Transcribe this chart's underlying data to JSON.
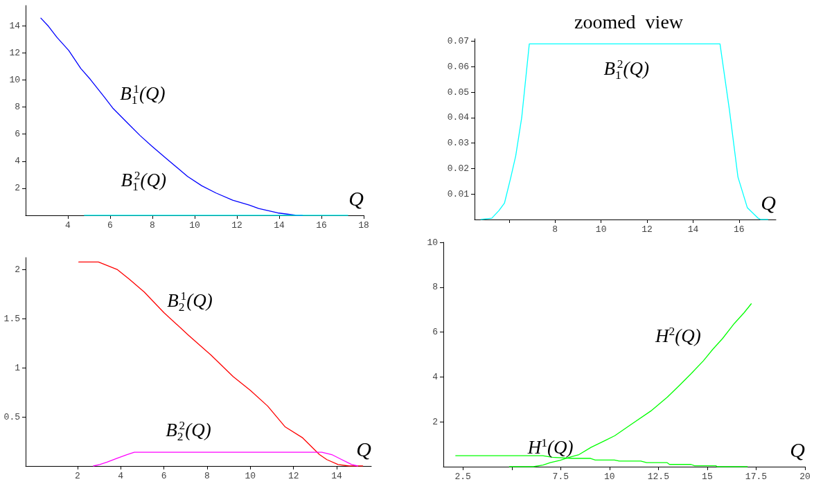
{
  "chart_data": [
    {
      "type": "line",
      "xlabel": "Q",
      "xlim": [
        2,
        18
      ],
      "ylim": [
        0,
        15.5
      ],
      "xticks": [
        4,
        6,
        8,
        10,
        12,
        14,
        16,
        18
      ],
      "yticks": [
        2,
        4,
        6,
        8,
        10,
        12,
        14
      ],
      "grid": false,
      "marker": "none",
      "line_style": "solid",
      "series": [
        {
          "color": "#0000ff",
          "x": [
            2.72,
            3.09,
            3.48,
            4.04,
            4.61,
            5.06,
            5.73,
            6.12,
            6.85,
            7.42,
            7.98,
            8.65,
            9.66,
            10.34,
            11.01,
            11.8,
            12.58,
            13.03,
            13.93,
            14.83,
            15.1
          ],
          "values": [
            14.57,
            13.95,
            13.15,
            12.18,
            10.85,
            10.05,
            8.73,
            7.93,
            6.78,
            5.89,
            5.1,
            4.21,
            2.88,
            2.18,
            1.65,
            1.12,
            0.76,
            0.5,
            0.18,
            0,
            0
          ]
        },
        {
          "color": "#00ffff",
          "x": [
            4.78,
            17.25
          ],
          "values": [
            0,
            0
          ]
        }
      ],
      "annotations": [
        "B$_{1}$$^{1}$(Q)",
        "B$_{1}$$^{2}$(Q)"
      ]
    },
    {
      "type": "line",
      "title": "zoomed  view",
      "xlabel": "Q",
      "xlim": [
        4.5,
        17.6
      ],
      "ylim": [
        0,
        0.071
      ],
      "xticks": [
        {
          "value": 6,
          "label": null
        },
        8,
        10,
        12,
        14,
        16
      ],
      "yticks": [
        0.01,
        0.02,
        0.03,
        0.04,
        0.05,
        0.06,
        0.07
      ],
      "grid": false,
      "marker": "none",
      "line_style": "solid",
      "series": [
        {
          "color": "#00ffff",
          "x": [
            4.78,
            5.25,
            5.56,
            5.8,
            6.08,
            6.29,
            6.55,
            6.88,
            15.17,
            15.58,
            15.95,
            16.36,
            16.83,
            16.93,
            17.25
          ],
          "values": [
            0,
            0.0005,
            0.0035,
            0.0064,
            0.0167,
            0.025,
            0.04,
            0.069,
            0.069,
            0.043,
            0.0167,
            0.0046,
            0.0005,
            0,
            0
          ]
        }
      ],
      "annotations": [
        "B$_{1}$$^{2}$(Q)"
      ]
    },
    {
      "type": "line",
      "xlabel": "Q",
      "xlim": [
        -0.4,
        15.6
      ],
      "ylim": [
        0,
        2.12
      ],
      "xticks": [
        2,
        4,
        6,
        8,
        10,
        12,
        14
      ],
      "yticks": [
        0.5,
        1,
        1.5,
        2
      ],
      "grid": false,
      "marker": "none",
      "line_style": "solid",
      "series": [
        {
          "color": "#ff0000",
          "x": [
            2.06,
            2.97,
            3.37,
            3.83,
            4.4,
            5.09,
            6.0,
            7.14,
            8.17,
            9.2,
            10.0,
            10.8,
            11.6,
            12.4,
            13.2,
            13.54,
            14.06,
            14.57,
            15.2
          ],
          "values": [
            2.075,
            2.075,
            2.04,
            2.0,
            1.9,
            1.77,
            1.56,
            1.33,
            1.13,
            0.91,
            0.77,
            0.61,
            0.4,
            0.29,
            0.116,
            0.065,
            0.015,
            0,
            0
          ]
        },
        {
          "color": "#ff00ff",
          "x": [
            2.74,
            3.03,
            3.37,
            3.83,
            4.29,
            4.63,
            13.31,
            13.77,
            14.23,
            14.69,
            14.97
          ],
          "values": [
            0,
            0.015,
            0.04,
            0.078,
            0.116,
            0.14,
            0.14,
            0.116,
            0.065,
            0.015,
            0
          ]
        }
      ],
      "annotations": [
        "B$_{2}$$^{1}$(Q)",
        "B$_{2}$$^{2}$(Q)"
      ]
    },
    {
      "type": "line",
      "xlabel": "Q",
      "xlim": [
        1.5,
        20
      ],
      "ylim": [
        0,
        10
      ],
      "xticks": [
        2.5,
        {
          "value": 5,
          "label": null
        },
        7.5,
        10,
        12.5,
        15,
        17.5,
        20
      ],
      "yticks": [
        2,
        4,
        6,
        8,
        10
      ],
      "grid": false,
      "marker": "none",
      "line_style": "solid",
      "series": [
        {
          "color": "#00ff00",
          "x": [
            2.13,
            6.58,
            7.07,
            8.05,
            9.03,
            9.27,
            10.25,
            10.5,
            11.6,
            11.9,
            12.95,
            13.07,
            14.17,
            14.35,
            15.45,
            15.5,
            17.05
          ],
          "values": [
            0.49,
            0.49,
            0.42,
            0.37,
            0.37,
            0.3,
            0.3,
            0.25,
            0.25,
            0.18,
            0.18,
            0.1,
            0.1,
            0.04,
            0.04,
            0,
            0
          ]
        },
        {
          "color": "#00ff00",
          "x": [
            4.88,
            6.11,
            6.6,
            6.97,
            7.46,
            7.95,
            8.44,
            9.05,
            9.78,
            10.27,
            11.13,
            12.11,
            12.96,
            13.57,
            14.18,
            14.8,
            15.29,
            15.78,
            16.39,
            16.88,
            17.25
          ],
          "values": [
            0,
            0,
            0.07,
            0.18,
            0.28,
            0.42,
            0.54,
            0.86,
            1.17,
            1.38,
            1.9,
            2.48,
            3.1,
            3.62,
            4.15,
            4.72,
            5.24,
            5.71,
            6.39,
            6.86,
            7.26
          ]
        }
      ],
      "annotations": [
        "H$^{2}$(Q)",
        "H$^{1}$(Q)"
      ]
    }
  ]
}
